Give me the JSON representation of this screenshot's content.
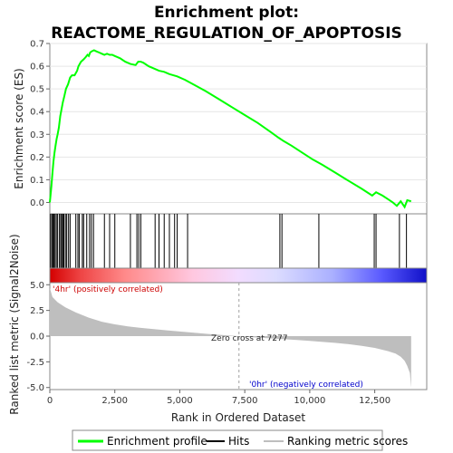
{
  "title_line1": "Enrichment plot:",
  "title_line2": "REACTOME_REGULATION_OF_APOPTOSIS",
  "chart_data": {
    "type": "line",
    "x_axis": {
      "label": "Rank in Ordered Dataset",
      "range": [
        0,
        14500
      ],
      "ticks": [
        0,
        2500,
        5000,
        7500,
        10000,
        12500
      ],
      "tick_labels": [
        "0",
        "2,500",
        "5,000",
        "7,500",
        "10,000",
        "12,500"
      ]
    },
    "es_panel": {
      "ylabel": "Enrichment score (ES)",
      "ylim": [
        -0.05,
        0.7
      ],
      "ticks": [
        0.0,
        0.1,
        0.2,
        0.3,
        0.4,
        0.5,
        0.6,
        0.7
      ],
      "tick_labels": [
        "0.0",
        "0.1",
        "0.2",
        "0.3",
        "0.4",
        "0.5",
        "0.6",
        "0.7"
      ],
      "series_name": "Enrichment profile",
      "color": "#00ff00",
      "x": [
        0,
        60,
        100,
        140,
        180,
        220,
        260,
        300,
        350,
        400,
        450,
        500,
        560,
        620,
        700,
        780,
        850,
        950,
        1050,
        1100,
        1150,
        1200,
        1300,
        1380,
        1450,
        1500,
        1550,
        1600,
        1700,
        1800,
        1900,
        2000,
        2100,
        2200,
        2300,
        2400,
        2500,
        2700,
        2900,
        3100,
        3300,
        3400,
        3500,
        3600,
        3800,
        4000,
        4200,
        4400,
        4600,
        4900,
        5200,
        5600,
        6000,
        6500,
        7000,
        7500,
        8000,
        8500,
        8800,
        9000,
        9300,
        9700,
        10100,
        10500,
        11000,
        11500,
        12000,
        12400,
        12550,
        12800,
        13000,
        13200,
        13350,
        13500,
        13650,
        13750,
        13900
      ],
      "y": [
        0.0,
        0.07,
        0.13,
        0.18,
        0.22,
        0.25,
        0.28,
        0.3,
        0.33,
        0.38,
        0.41,
        0.44,
        0.47,
        0.5,
        0.52,
        0.55,
        0.56,
        0.56,
        0.58,
        0.6,
        0.61,
        0.62,
        0.63,
        0.64,
        0.65,
        0.645,
        0.66,
        0.665,
        0.67,
        0.665,
        0.66,
        0.655,
        0.65,
        0.655,
        0.65,
        0.65,
        0.645,
        0.635,
        0.62,
        0.61,
        0.605,
        0.62,
        0.62,
        0.615,
        0.6,
        0.59,
        0.58,
        0.575,
        0.565,
        0.555,
        0.54,
        0.515,
        0.49,
        0.455,
        0.42,
        0.385,
        0.35,
        0.31,
        0.285,
        0.27,
        0.25,
        0.22,
        0.19,
        0.165,
        0.13,
        0.095,
        0.06,
        0.03,
        0.045,
        0.03,
        0.015,
        0.0,
        -0.015,
        0.005,
        -0.02,
        0.01,
        0.005
      ]
    },
    "hits": [
      30,
      80,
      120,
      160,
      200,
      250,
      300,
      370,
      420,
      460,
      500,
      540,
      600,
      650,
      720,
      780,
      1000,
      1080,
      1130,
      1250,
      1300,
      1420,
      1530,
      1600,
      1680,
      2100,
      2300,
      2500,
      3100,
      3350,
      3420,
      3500,
      4050,
      4200,
      4400,
      4600,
      4800,
      4900,
      5300,
      8850,
      8930,
      10350,
      12480,
      12550,
      13450,
      13720
    ],
    "ranked_metric": {
      "ylabel": "Ranked list metric (Signal2Noise)",
      "ylim": [
        -5.2,
        5.2
      ],
      "ticks": [
        5.0,
        2.5,
        0.0,
        -2.5,
        -5.0
      ],
      "tick_labels": [
        "5.0",
        "2.5",
        "0.0",
        "-2.5",
        "-5.0"
      ],
      "x": [
        0,
        100,
        300,
        600,
        1000,
        1500,
        2000,
        2500,
        3000,
        3500,
        4000,
        4500,
        5000,
        5500,
        6000,
        6500,
        7000,
        7277,
        7500,
        8000,
        8500,
        9000,
        9500,
        10000,
        10500,
        11000,
        11500,
        12000,
        12500,
        13000,
        13300,
        13500,
        13650,
        13750,
        13850,
        13900
      ],
      "y": [
        4.7,
        3.8,
        3.3,
        2.8,
        2.3,
        1.8,
        1.4,
        1.15,
        0.95,
        0.8,
        0.68,
        0.56,
        0.45,
        0.34,
        0.23,
        0.13,
        0.04,
        0.0,
        -0.05,
        -0.14,
        -0.22,
        -0.3,
        -0.38,
        -0.47,
        -0.56,
        -0.66,
        -0.78,
        -0.95,
        -1.15,
        -1.45,
        -1.7,
        -2.0,
        -2.4,
        -2.9,
        -3.6,
        -5.0
      ]
    },
    "zero_cross_rank": 7277,
    "annotations": {
      "positive": "'4hr' (positively correlated)",
      "negative": "'0hr' (negatively correlated)",
      "zero_cross": "Zero cross at 7277"
    },
    "legend": {
      "placement": "bottom",
      "items": [
        "Enrichment profile",
        "Hits",
        "Ranking metric scores"
      ]
    },
    "colors": {
      "enrichment": "#00ff00",
      "hits": "#000000",
      "metric_fill": "#bebebe",
      "positive_text": "#cc0000",
      "negative_text": "#0000cc",
      "zero_line": "#a0a0a0"
    }
  }
}
